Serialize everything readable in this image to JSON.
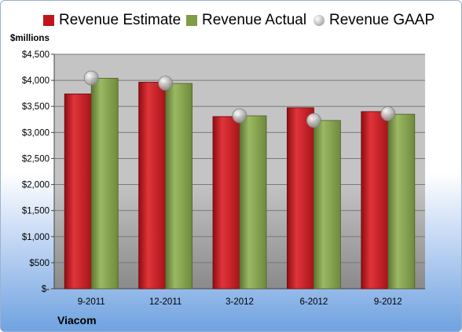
{
  "chart_data": {
    "type": "bar",
    "unit_label": "$millions",
    "company": "Viacom",
    "categories": [
      "9-2011",
      "12-2011",
      "3-2012",
      "6-2012",
      "9-2012"
    ],
    "series": [
      {
        "name": "Revenue Estimate",
        "kind": "bar",
        "color": "#c0151b",
        "values": [
          3740,
          3965,
          3305,
          3475,
          3400
        ]
      },
      {
        "name": "Revenue Actual",
        "kind": "bar",
        "color": "#7f9c47",
        "values": [
          4040,
          3940,
          3320,
          3230,
          3350
        ]
      },
      {
        "name": "Revenue GAAP",
        "kind": "marker",
        "color": "#b9b9b9",
        "values": [
          4045,
          3945,
          3320,
          3230,
          3360
        ]
      }
    ],
    "y_ticks": [
      "$-",
      "$500",
      "$1,000",
      "$1,500",
      "$2,000",
      "$2,500",
      "$3,000",
      "$3,500",
      "$4,000",
      "$4,500"
    ],
    "ylim": [
      0,
      4500
    ],
    "grid": true,
    "legend_position": "top"
  }
}
